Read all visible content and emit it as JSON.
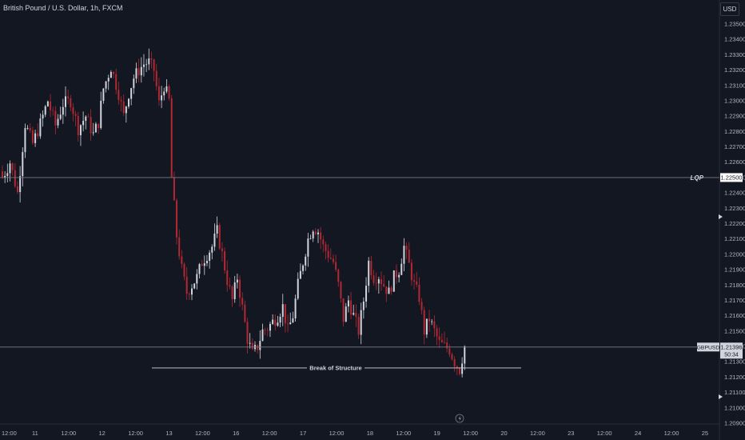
{
  "header": {
    "title": "British Pound / U.S. Dollar, 1h, FXCM",
    "currency": "USD"
  },
  "chart_data": {
    "type": "candlestick",
    "title": "British Pound / U.S. Dollar, 1h, FXCM",
    "symbol": "GBPUSD",
    "y_ticks": [
      "1.23500",
      "1.23400",
      "1.23300",
      "1.23200",
      "1.23100",
      "1.23000",
      "1.22900",
      "1.22800",
      "1.22700",
      "1.22600",
      "1.22500",
      "1.22400",
      "1.22300",
      "1.22200",
      "1.22100",
      "1.22000",
      "1.21900",
      "1.21800",
      "1.21700",
      "1.21600",
      "1.21500",
      "1.21400",
      "1.21300",
      "1.21200",
      "1.21100",
      "1.21000",
      "1.20900"
    ],
    "x_ticks": [
      "12:00",
      "11",
      "12:00",
      "12",
      "12:00",
      "13",
      "12:00",
      "16",
      "12:00",
      "17",
      "12:00",
      "18",
      "12:00",
      "19",
      "12:00",
      "20",
      "12:00",
      "23",
      "12:00",
      "24",
      "12:00",
      "25"
    ],
    "ylim": [
      1.2088,
      1.2361
    ],
    "last_price": "1.21396",
    "countdown": "50:34",
    "lqp_label": "LQP",
    "lqp_price": "1.22500",
    "annotation": "Break of Structure",
    "bos_level": 1.2126,
    "grid": false,
    "colors": {
      "bull": "#d1d4dc",
      "bear": "#b22833",
      "background": "#131722",
      "line": "#9598a1"
    },
    "ohlc_anchors": [
      [
        0,
        1.225
      ],
      [
        3,
        1.226
      ],
      [
        6,
        1.224
      ],
      [
        9,
        1.2285
      ],
      [
        12,
        1.2272
      ],
      [
        15,
        1.2285
      ],
      [
        18,
        1.23
      ],
      [
        21,
        1.2284
      ],
      [
        24,
        1.2298
      ],
      [
        27,
        1.23
      ],
      [
        30,
        1.2282
      ],
      [
        33,
        1.229
      ],
      [
        36,
        1.2278
      ],
      [
        38,
        1.2286
      ],
      [
        40,
        1.2308
      ],
      [
        43,
        1.2322
      ],
      [
        46,
        1.2305
      ],
      [
        48,
        1.229
      ],
      [
        50,
        1.2305
      ],
      [
        52,
        1.2315
      ],
      [
        54,
        1.232
      ],
      [
        56,
        1.2324
      ],
      [
        58,
        1.2325
      ],
      [
        60,
        1.232
      ],
      [
        62,
        1.2298
      ],
      [
        64,
        1.231
      ],
      [
        66,
        1.23
      ],
      [
        67,
        1.225
      ],
      [
        69,
        1.2212
      ],
      [
        71,
        1.219
      ],
      [
        73,
        1.2175
      ],
      [
        75,
        1.218
      ],
      [
        77,
        1.2185
      ],
      [
        79,
        1.2195
      ],
      [
        81,
        1.22
      ],
      [
        83,
        1.2205
      ],
      [
        85,
        1.2215
      ],
      [
        87,
        1.22
      ],
      [
        89,
        1.2183
      ],
      [
        91,
        1.217
      ],
      [
        93,
        1.2185
      ],
      [
        95,
        1.2165
      ],
      [
        97,
        1.2145
      ],
      [
        99,
        1.2135
      ],
      [
        101,
        1.214
      ],
      [
        103,
        1.215
      ],
      [
        105,
        1.2152
      ],
      [
        107,
        1.2156
      ],
      [
        109,
        1.216
      ],
      [
        111,
        1.2166
      ],
      [
        113,
        1.215
      ],
      [
        115,
        1.216
      ],
      [
        117,
        1.218
      ],
      [
        119,
        1.2195
      ],
      [
        121,
        1.221
      ],
      [
        123,
        1.2218
      ],
      [
        125,
        1.2215
      ],
      [
        127,
        1.2205
      ],
      [
        129,
        1.22
      ],
      [
        131,
        1.2195
      ],
      [
        133,
        1.218
      ],
      [
        135,
        1.2158
      ],
      [
        137,
        1.217
      ],
      [
        139,
        1.216
      ],
      [
        141,
        1.215
      ],
      [
        143,
        1.217
      ],
      [
        145,
        1.2195
      ],
      [
        147,
        1.2185
      ],
      [
        149,
        1.2186
      ],
      [
        151,
        1.218
      ],
      [
        153,
        1.2175
      ],
      [
        155,
        1.2185
      ],
      [
        157,
        1.219
      ],
      [
        159,
        1.2205
      ],
      [
        161,
        1.2193
      ],
      [
        163,
        1.218
      ],
      [
        165,
        1.2172
      ],
      [
        167,
        1.215
      ],
      [
        169,
        1.2158
      ],
      [
        171,
        1.215
      ],
      [
        173,
        1.2142
      ],
      [
        175,
        1.214
      ],
      [
        177,
        1.2138
      ],
      [
        179,
        1.213
      ],
      [
        181,
        1.2125
      ],
      [
        183,
        1.214
      ]
    ]
  }
}
